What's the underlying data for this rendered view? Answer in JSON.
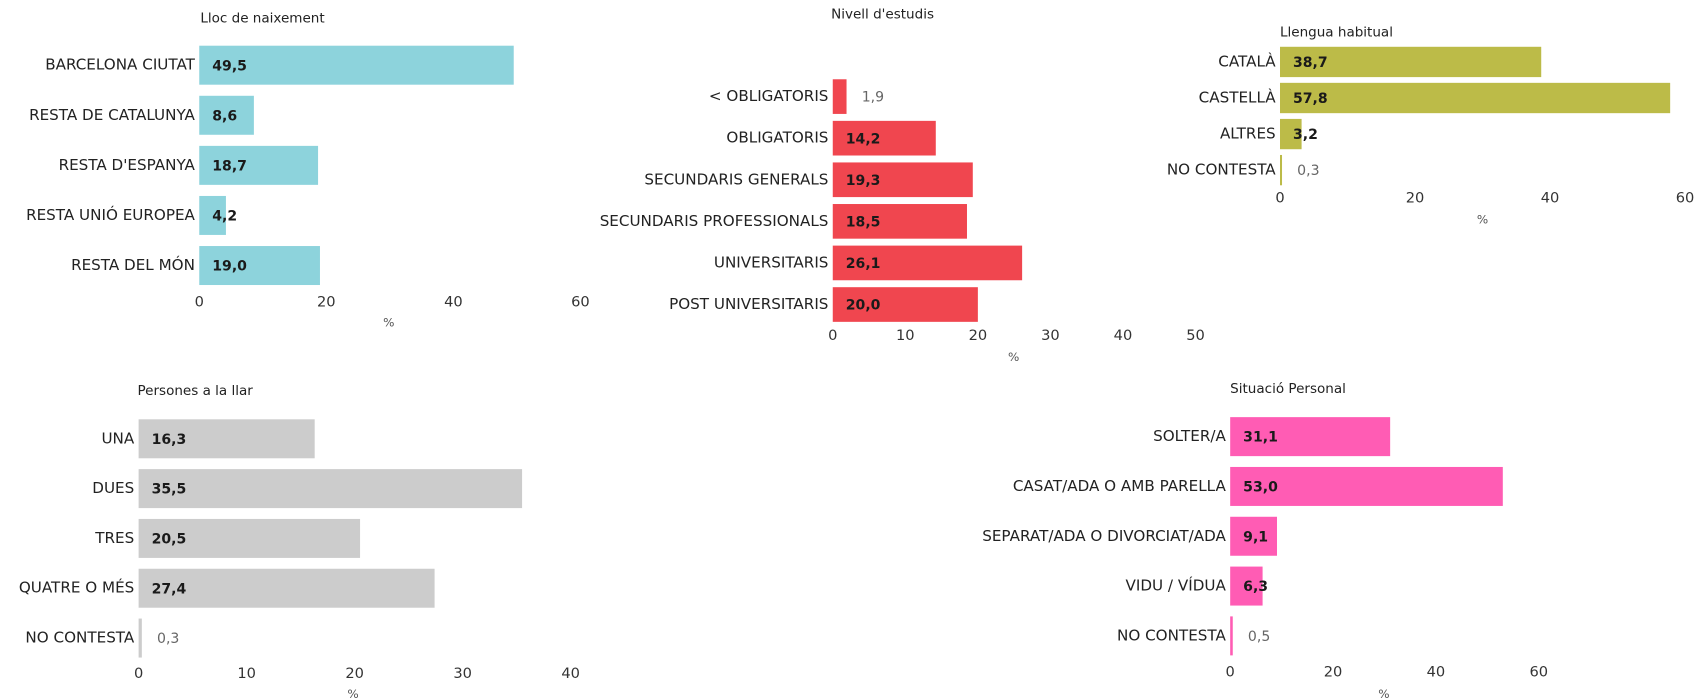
{
  "chart_data": [
    {
      "type": "barh",
      "title": "Lloc de naixement",
      "xlabel": "%",
      "color": "#8dd3dc",
      "categories": [
        "BARCELONA CIUTAT",
        "RESTA DE CATALUNYA",
        "RESTA D'ESPANYA",
        "RESTA UNIÓ EUROPEA",
        "RESTA DEL MÓN"
      ],
      "values": [
        49.5,
        8.6,
        18.7,
        4.2,
        19.0
      ],
      "value_labels": [
        "49,5",
        "8,6",
        "18,7",
        "4,2",
        "19,0"
      ],
      "xlim": [
        0,
        60
      ],
      "xticks": [
        0,
        20,
        40,
        60
      ]
    },
    {
      "type": "barh",
      "title": "Nivell d'estudis",
      "xlabel": "%",
      "color": "#f0464f",
      "categories": [
        "< OBLIGATORIS",
        "OBLIGATORIS",
        "SECUNDARIS GENERALS",
        "SECUNDARIS PROFESSIONALS",
        "UNIVERSITARIS",
        "POST UNIVERSITARIS"
      ],
      "values": [
        1.9,
        14.2,
        19.3,
        18.5,
        26.1,
        20.0
      ],
      "value_labels": [
        "1,9",
        "14,2",
        "19,3",
        "18,5",
        "26,1",
        "20,0"
      ],
      "xlim": [
        0,
        50
      ],
      "xticks": [
        0,
        10,
        20,
        30,
        40,
        50
      ]
    },
    {
      "type": "barh",
      "title": "Llengua habitual",
      "xlabel": "%",
      "color": "#bcbb48",
      "categories": [
        "CATALÀ",
        "CASTELLÀ",
        "ALTRES",
        "NO CONTESTA"
      ],
      "values": [
        38.7,
        57.8,
        3.2,
        0.3
      ],
      "value_labels": [
        "38,7",
        "57,8",
        "3,2",
        "0,3"
      ],
      "xlim": [
        0,
        60
      ],
      "xticks": [
        0,
        20,
        40,
        60
      ]
    },
    {
      "type": "barh",
      "title": "Persones a la llar",
      "xlabel": "%",
      "color": "#cccccc",
      "categories": [
        "UNA",
        "DUES",
        "TRES",
        "QUATRE O MÉS",
        "NO CONTESTA"
      ],
      "values": [
        16.3,
        35.5,
        20.5,
        27.4,
        0.3
      ],
      "value_labels": [
        "16,3",
        "35,5",
        "20,5",
        "27,4",
        "0,3"
      ],
      "xlim": [
        0,
        40
      ],
      "xticks": [
        0,
        10,
        20,
        30,
        40
      ]
    },
    {
      "type": "barh",
      "title": "Situació Personal",
      "xlabel": "%",
      "color": "#ff5cb4",
      "categories": [
        "SOLTER/A",
        "CASAT/ADA O AMB PARELLA",
        "SEPARAT/ADA O DIVORCIAT/ADA",
        "VIDU / VÍDUA",
        "NO CONTESTA"
      ],
      "values": [
        31.1,
        53.0,
        9.1,
        6.3,
        0.5
      ],
      "value_labels": [
        "31,1",
        "53,0",
        "9,1",
        "6,3",
        "0,5"
      ],
      "xlim": [
        0,
        60
      ],
      "xticks": [
        0,
        20,
        40,
        60
      ]
    }
  ]
}
